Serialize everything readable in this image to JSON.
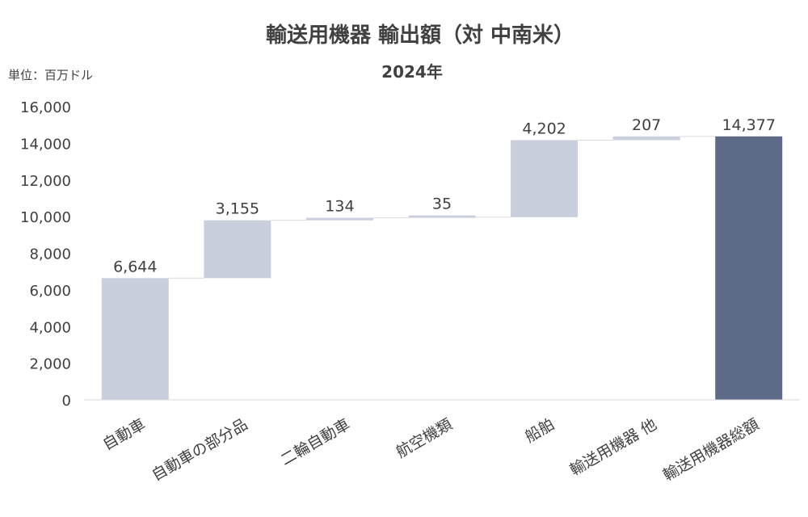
{
  "chart_data": {
    "type": "bar",
    "subtype": "waterfall",
    "title": "輸送用機器 輸出額（対 中南米）",
    "subtitle": "2024年",
    "unit_label": "単位：百万ドル",
    "categories": [
      "自動車",
      "自動車の部分品",
      "二輪自動車",
      "航空機類",
      "船舶",
      "輸送用機器 他",
      "輸送用機器総額"
    ],
    "values": [
      6644,
      3155,
      134,
      35,
      4202,
      207,
      14377
    ],
    "value_labels": [
      "6,644",
      "3,155",
      "134",
      "35",
      "4,202",
      "207",
      "14,377"
    ],
    "is_total": [
      false,
      false,
      false,
      false,
      false,
      false,
      true
    ],
    "ylim": [
      0,
      16000
    ],
    "yticks": [
      0,
      2000,
      4000,
      6000,
      8000,
      10000,
      12000,
      14000,
      16000
    ],
    "ytick_labels": [
      "0",
      "2,000",
      "4,000",
      "6,000",
      "8,000",
      "10,000",
      "12,000",
      "14,000",
      "16,000"
    ],
    "grid": false,
    "colors": {
      "increment": "#C9CFDC",
      "total": "#5E6B88",
      "connector": "#D9D9D9",
      "axis": "#D9D9D9"
    }
  }
}
